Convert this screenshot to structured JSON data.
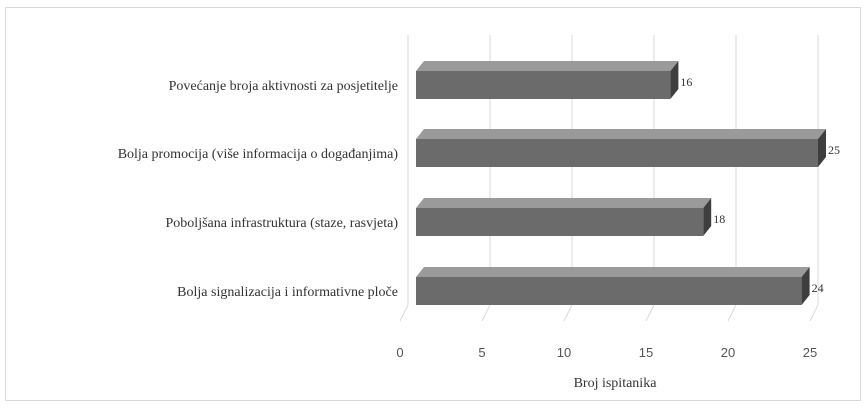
{
  "chart_data": {
    "type": "bar",
    "orientation": "horizontal",
    "style": "3d",
    "categories": [
      "Povećanje broja aktivnosti za posjetitelje",
      "Bolja promocija (više informacija o događanjima)",
      "Poboljšana infrastruktura (staze, rasvjeta)",
      "Bolja signalizacija i informativne ploče"
    ],
    "values": [
      16,
      25,
      18,
      24
    ],
    "data_labels": [
      "16",
      "25",
      "18",
      "24"
    ],
    "xlabel": "Broj ispitanika",
    "xlim": [
      0,
      25
    ],
    "xticks": [
      0,
      5,
      10,
      15,
      20,
      25
    ],
    "xtick_labels": [
      "0",
      "5",
      "10",
      "15",
      "20",
      "25"
    ],
    "grid": true,
    "legend": "none",
    "colors": {
      "bar_front": "#6b6b6b",
      "bar_top": "#9a9a9a",
      "bar_side": "#3e3e3e",
      "gridline": "#d9d9d9"
    }
  }
}
